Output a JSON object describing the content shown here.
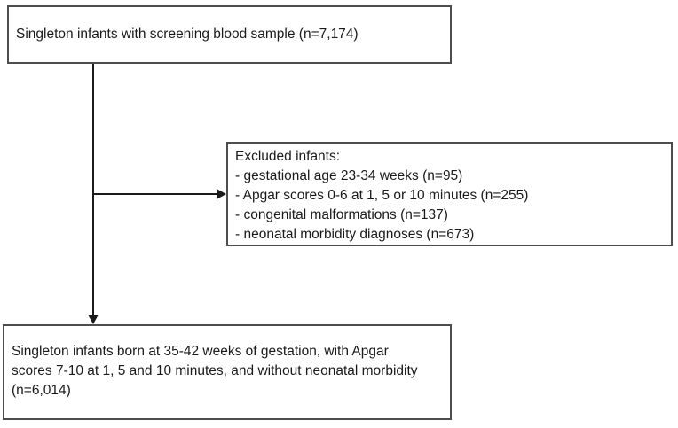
{
  "flowchart": {
    "top_box": {
      "text": "Singleton infants with screening blood sample (n=7,174)"
    },
    "excluded_box": {
      "title": "Excluded infants:",
      "items": [
        "- gestational age 23-34 weeks (n=95)",
        "- Apgar scores 0-6 at 1, 5 or 10 minutes (n=255)",
        "- congenital malformations (n=137)",
        "- neonatal morbidity diagnoses (n=673)"
      ]
    },
    "bottom_box": {
      "text": "Singleton infants born at 35-42 weeks of gestation, with Apgar scores 7-10 at 1, 5 and 10 minutes, and without neonatal morbidity (n=6,014)"
    },
    "colors": {
      "border": "#4d4d4d",
      "arrow": "#1a1a1a",
      "background": "#ffffff",
      "text": "#1a1a1a"
    }
  }
}
